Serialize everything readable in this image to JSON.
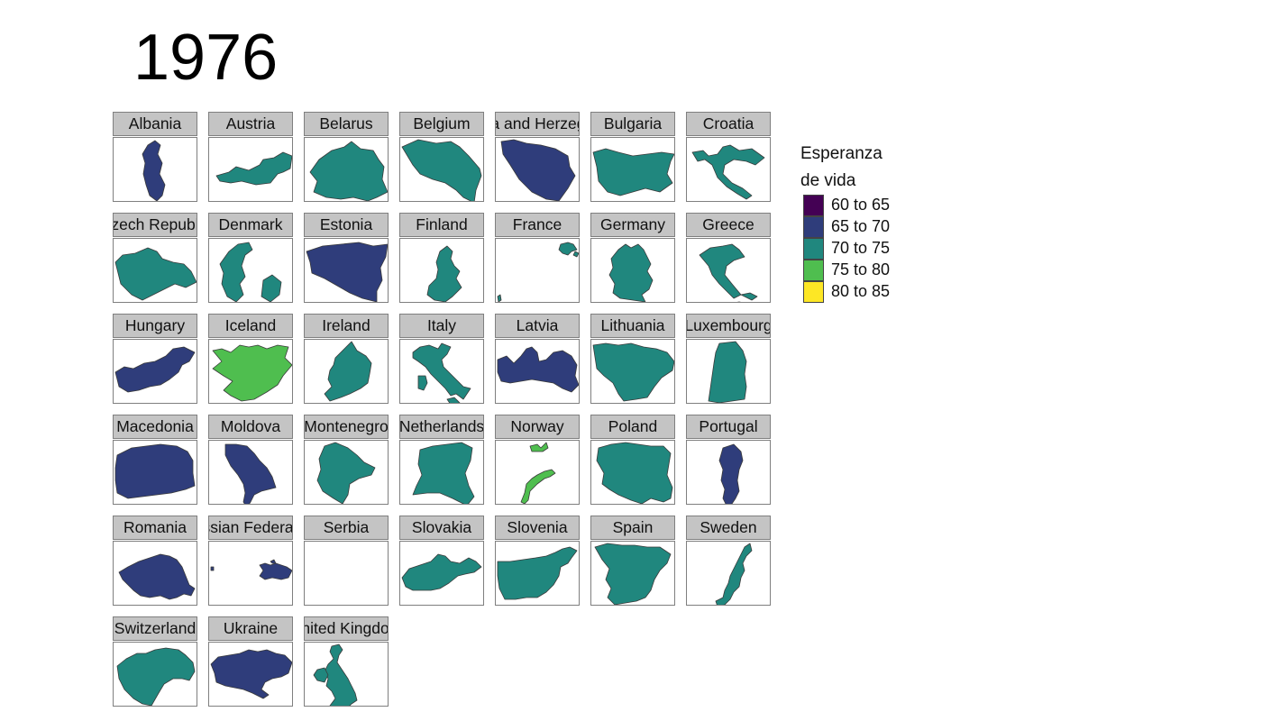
{
  "title": "1976",
  "legend": {
    "title_line1": "Esperanza",
    "title_line2": "de vida",
    "items": [
      {
        "label": "60 to 65",
        "color": "#440154"
      },
      {
        "label": "65 to 70",
        "color": "#2f3d7b"
      },
      {
        "label": "70 to 75",
        "color": "#20877e"
      },
      {
        "label": "75 to 80",
        "color": "#4fbe4f"
      },
      {
        "label": "80 to 85",
        "color": "#fde725"
      }
    ]
  },
  "panels": [
    {
      "label": "Albania",
      "band": 1,
      "shape": "albania"
    },
    {
      "label": "Austria",
      "band": 2,
      "shape": "austria"
    },
    {
      "label": "Belarus",
      "band": 2,
      "shape": "belarus"
    },
    {
      "label": "Belgium",
      "band": 2,
      "shape": "belgium"
    },
    {
      "label": "Bosnia and Herzegovina",
      "band": 1,
      "shape": "bosnia"
    },
    {
      "label": "Bulgaria",
      "band": 2,
      "shape": "bulgaria"
    },
    {
      "label": "Croatia",
      "band": 2,
      "shape": "croatia"
    },
    {
      "label": "Czech Republic",
      "band": 2,
      "shape": "czech"
    },
    {
      "label": "Denmark",
      "band": 2,
      "shape": "denmark"
    },
    {
      "label": "Estonia",
      "band": 1,
      "shape": "estonia"
    },
    {
      "label": "Finland",
      "band": 2,
      "shape": "finland"
    },
    {
      "label": "France",
      "band": 2,
      "shape": "france"
    },
    {
      "label": "Germany",
      "band": 2,
      "shape": "germany"
    },
    {
      "label": "Greece",
      "band": 2,
      "shape": "greece"
    },
    {
      "label": "Hungary",
      "band": 1,
      "shape": "hungary"
    },
    {
      "label": "Iceland",
      "band": 3,
      "shape": "iceland"
    },
    {
      "label": "Ireland",
      "band": 2,
      "shape": "ireland"
    },
    {
      "label": "Italy",
      "band": 2,
      "shape": "italy"
    },
    {
      "label": "Latvia",
      "band": 1,
      "shape": "latvia"
    },
    {
      "label": "Lithuania",
      "band": 2,
      "shape": "lithuania"
    },
    {
      "label": "Luxembourg",
      "band": 2,
      "shape": "luxembourg"
    },
    {
      "label": "Macedonia",
      "band": 1,
      "shape": "macedonia"
    },
    {
      "label": "Moldova",
      "band": 1,
      "shape": "moldova"
    },
    {
      "label": "Montenegro",
      "band": 2,
      "shape": "montenegro"
    },
    {
      "label": "Netherlands",
      "band": 2,
      "shape": "netherlands"
    },
    {
      "label": "Norway",
      "band": 3,
      "shape": "norway"
    },
    {
      "label": "Poland",
      "band": 2,
      "shape": "poland"
    },
    {
      "label": "Portugal",
      "band": 1,
      "shape": "portugal"
    },
    {
      "label": "Romania",
      "band": 1,
      "shape": "romania"
    },
    {
      "label": "Russian Federation",
      "band": 1,
      "shape": "russia"
    },
    {
      "label": "Serbia",
      "band": null,
      "shape": "none"
    },
    {
      "label": "Slovakia",
      "band": 2,
      "shape": "slovakia"
    },
    {
      "label": "Slovenia",
      "band": 2,
      "shape": "slovenia"
    },
    {
      "label": "Spain",
      "band": 2,
      "shape": "spain"
    },
    {
      "label": "Sweden",
      "band": 2,
      "shape": "sweden"
    },
    {
      "label": "Switzerland",
      "band": 2,
      "shape": "switzerland"
    },
    {
      "label": "Ukraine",
      "band": 1,
      "shape": "ukraine"
    },
    {
      "label": "United Kingdom",
      "band": 2,
      "shape": "uk"
    }
  ]
}
